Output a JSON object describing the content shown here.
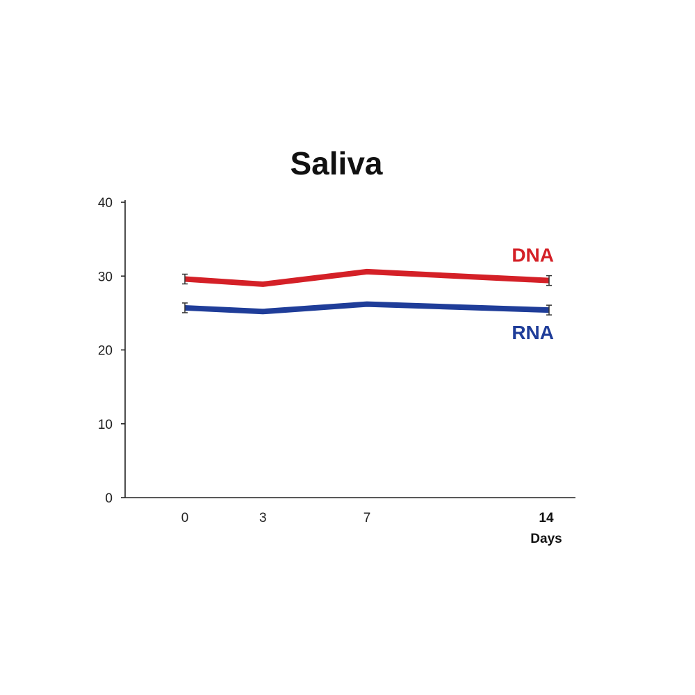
{
  "chart_data": {
    "type": "line",
    "title": "Saliva",
    "xlabel": "Days",
    "ylabel": "",
    "x": [
      0,
      3,
      7,
      14
    ],
    "x_tick_labels": [
      "0",
      "3",
      "7",
      "14"
    ],
    "y_ticks": [
      0,
      10,
      20,
      30,
      40
    ],
    "ylim": [
      0,
      40
    ],
    "grid": false,
    "series": [
      {
        "name": "DNA",
        "color": "#d42027",
        "values": [
          29.6,
          28.9,
          30.6,
          29.4
        ]
      },
      {
        "name": "RNA",
        "color": "#1f3d99",
        "values": [
          25.7,
          25.2,
          26.2,
          25.4
        ]
      }
    ]
  }
}
